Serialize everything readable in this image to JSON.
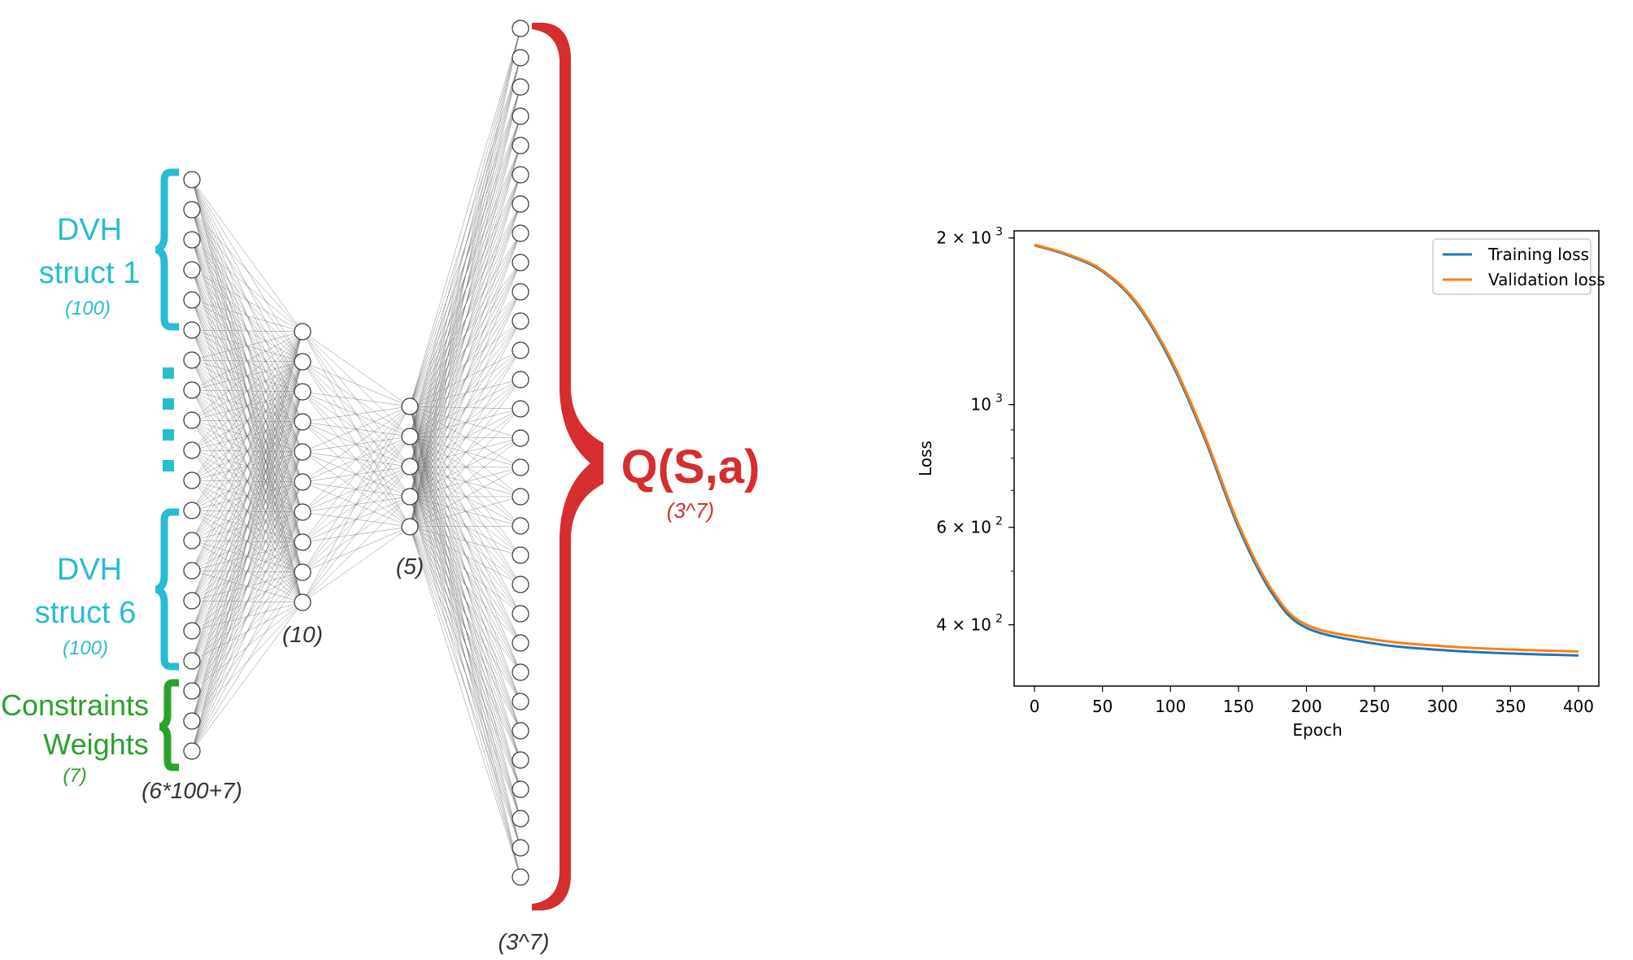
{
  "network": {
    "input_group_1": {
      "label_line1": "DVH",
      "label_line2": "struct 1",
      "count": "(100)"
    },
    "input_group_6": {
      "label_line1": "DVH",
      "label_line2": "struct 6",
      "count": "(100)"
    },
    "input_group_constraints": {
      "label_line1": "Constraints",
      "label_line2": "Weights",
      "count": "(7)"
    },
    "layers": [
      {
        "nodes": 20,
        "count_label": "(6*100+7)"
      },
      {
        "nodes": 10,
        "count_label": "(10)"
      },
      {
        "nodes": 5,
        "count_label": "(5)"
      },
      {
        "nodes": 30,
        "count_label": "(3^7)"
      }
    ],
    "output": {
      "label": "Q(S,a)",
      "count": "(3^7)"
    },
    "colors": {
      "cyan": "#27bccf",
      "green": "#2ca02c",
      "red": "#d62d2f",
      "edge": "#555555"
    }
  },
  "chart_data": {
    "type": "line",
    "xlabel": "Epoch",
    "ylabel": "Loss",
    "xlim": [
      -15,
      415
    ],
    "ylim": [
      310,
      2060
    ],
    "yscale": "log",
    "xticks": [
      "0",
      "50",
      "100",
      "150",
      "200",
      "250",
      "300",
      "350",
      "400"
    ],
    "yticks": [
      {
        "value": 2000,
        "base": "2 × 10",
        "exp": "3"
      },
      {
        "value": 1000,
        "base": "10",
        "exp": "3"
      },
      {
        "value": 600,
        "base": "6 × 10",
        "exp": "2"
      },
      {
        "value": 400,
        "base": "4 × 10",
        "exp": "2"
      }
    ],
    "legend_position": "top-right",
    "x": [
      0,
      25,
      50,
      75,
      100,
      125,
      150,
      175,
      200,
      250,
      300,
      350,
      400
    ],
    "series": [
      {
        "name": "Training loss",
        "color": "#1f77b4",
        "values": [
          1940,
          1860,
          1740,
          1520,
          1200,
          870,
          600,
          455,
          395,
          370,
          360,
          355,
          352
        ]
      },
      {
        "name": "Validation loss",
        "color": "#ff7f0e",
        "values": [
          1945,
          1866,
          1748,
          1530,
          1212,
          880,
          608,
          461,
          400,
          376,
          366,
          361,
          358
        ]
      }
    ]
  }
}
